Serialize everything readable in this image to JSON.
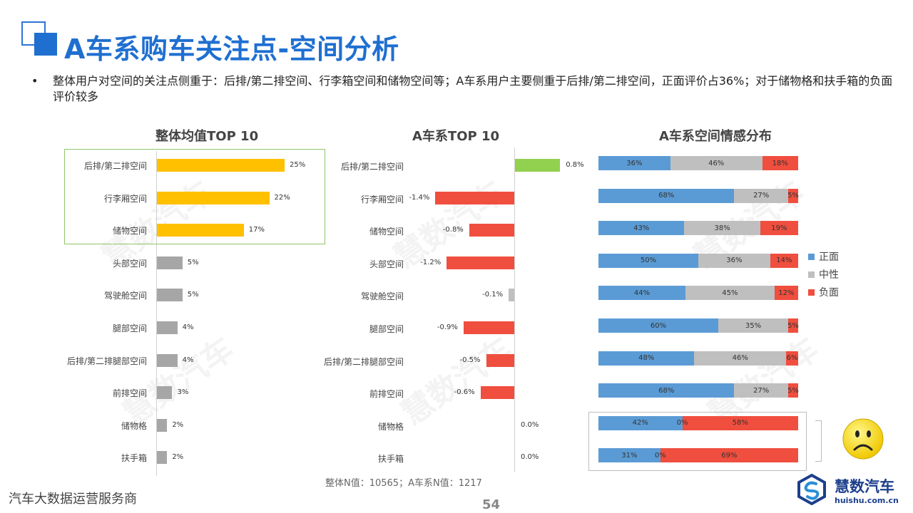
{
  "page": {
    "title": "A车系购车关注点-空间分析",
    "summary": "整体用户对空间的关注点侧重于：后排/第二排空间、行李箱空间和储物空间等；A车系用户主要侧重于后排/第二排空间，正面评价占36%；对于储物格和扶手箱的负面评价较多",
    "bullet": "•",
    "note": "整体N值：10565；A车系N值：1217",
    "footer_left": "汽车大数据运营服务商",
    "page_number": "54",
    "brand_name": "慧数汽车",
    "brand_url": "huishu.com.cn",
    "watermark": "慧数汽车"
  },
  "colors": {
    "title_blue": "#1f6fd1",
    "highlight_yellow": "#ffc000",
    "neutral_gray": "#a6a6a6",
    "positive_green": "#92d050",
    "negative_red": "#f04e3e",
    "pos_blue": "#5b9bd5",
    "neu_gray": "#bfbfbf",
    "neg_red": "#f04e3e"
  },
  "chart_data": [
    {
      "type": "bar",
      "orientation": "horizontal",
      "title": "整体均值TOP 10",
      "categories": [
        "后排/第二排空间",
        "行李厢空间",
        "储物空间",
        "头部空间",
        "驾驶舱空间",
        "腿部空间",
        "后排/第二排腿部空间",
        "前排空间",
        "储物格",
        "扶手箱"
      ],
      "values": [
        25,
        22,
        17,
        5,
        5,
        4,
        4,
        3,
        2,
        2
      ],
      "labels": [
        "25%",
        "22%",
        "17%",
        "5%",
        "5%",
        "4%",
        "4%",
        "3%",
        "2%",
        "2%"
      ],
      "unit": "%",
      "highlight_top": 3
    },
    {
      "type": "bar",
      "orientation": "horizontal",
      "title": "A车系TOP 10",
      "categories": [
        "后排/第二排空间",
        "行李厢空间",
        "储物空间",
        "头部空间",
        "驾驶舱空间",
        "腿部空间",
        "后排/第二排腿部空间",
        "前排空间",
        "储物格",
        "扶手箱"
      ],
      "values": [
        0.8,
        -1.4,
        -0.8,
        -1.2,
        -0.1,
        -0.9,
        -0.5,
        -0.6,
        0.0,
        0.0
      ],
      "labels": [
        "0.8%",
        "-1.4%",
        "-0.8%",
        "-1.2%",
        "-0.1%",
        "-0.9%",
        "-0.5%",
        "-0.6%",
        "0.0%",
        "0.0%"
      ],
      "unit": "%"
    },
    {
      "type": "bar",
      "stacked": true,
      "orientation": "horizontal",
      "title": "A车系空间情感分布",
      "series": [
        {
          "name": "正面",
          "values": [
            36,
            68,
            43,
            50,
            44,
            60,
            48,
            68,
            42,
            31
          ]
        },
        {
          "name": "中性",
          "values": [
            46,
            27,
            38,
            36,
            45,
            35,
            46,
            27,
            0,
            0
          ]
        },
        {
          "name": "负面",
          "values": [
            18,
            5,
            19,
            14,
            12,
            5,
            6,
            5,
            58,
            69
          ]
        }
      ],
      "labels": [
        [
          "36%",
          "46%",
          "18%"
        ],
        [
          "68%",
          "27%",
          "5%"
        ],
        [
          "43%",
          "38%",
          "19%"
        ],
        [
          "50%",
          "36%",
          "14%"
        ],
        [
          "44%",
          "45%",
          "12%"
        ],
        [
          "60%",
          "35%",
          "5%"
        ],
        [
          "48%",
          "46%",
          "6%"
        ],
        [
          "68%",
          "27%",
          "5%"
        ],
        [
          "42%",
          "0%",
          "58%"
        ],
        [
          "31%",
          "0%",
          "69%"
        ]
      ],
      "legend_position": "right",
      "unit": "%"
    }
  ]
}
